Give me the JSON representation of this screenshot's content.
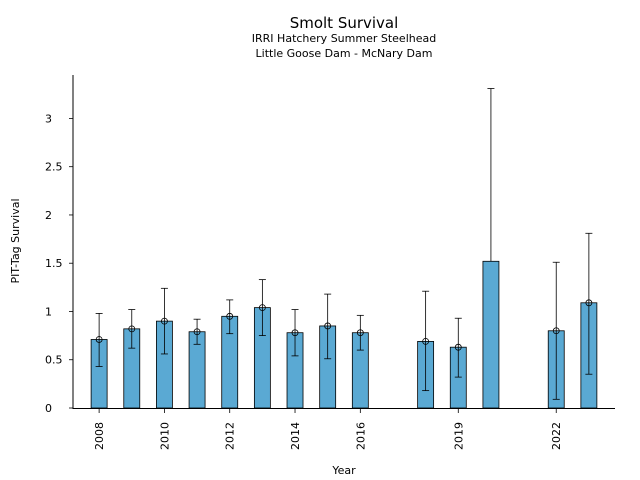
{
  "chart_data": {
    "type": "bar",
    "title": "Smolt Survival",
    "subtitle": [
      "IRRI Hatchery Summer Steelhead",
      "Little Goose Dam - McNary Dam"
    ],
    "xlabel": "Year",
    "ylabel": "PIT-Tag Survival",
    "ylim": [
      0,
      3.45
    ],
    "xlim": [
      2007.2,
      2023.8
    ],
    "yticks": [
      0,
      0.5,
      1,
      1.5,
      2,
      2.5,
      3
    ],
    "ytick_labels": [
      "0",
      "0.5",
      "1",
      "1.5",
      "2",
      "2.5",
      "3"
    ],
    "xticks": [
      2008,
      2010,
      2012,
      2014,
      2016,
      2019,
      2022
    ],
    "xtick_labels": [
      "2008",
      "2010",
      "2012",
      "2014",
      "2016",
      "2019",
      "2022"
    ],
    "grid": false,
    "legend": "none",
    "bar_color": "#5aa9d3",
    "series": [
      {
        "x": [
          2008,
          2009,
          2010,
          2011,
          2012,
          2013,
          2014,
          2015,
          2016,
          2018,
          2019,
          2020,
          2022,
          2023
        ],
        "values": [
          0.71,
          0.82,
          0.9,
          0.79,
          0.95,
          1.04,
          0.78,
          0.85,
          0.78,
          0.69,
          0.63,
          1.52,
          0.8,
          1.09
        ],
        "err_low": [
          0.43,
          0.62,
          0.56,
          0.66,
          0.77,
          0.75,
          0.54,
          0.51,
          0.6,
          0.18,
          0.32,
          null,
          0.09,
          0.35
        ],
        "err_high": [
          0.98,
          1.02,
          1.24,
          0.92,
          1.12,
          1.33,
          1.02,
          1.18,
          0.96,
          1.21,
          0.93,
          3.31,
          1.51,
          1.81
        ],
        "point_marker": [
          true,
          true,
          true,
          true,
          true,
          true,
          true,
          true,
          true,
          true,
          true,
          false,
          true,
          true
        ]
      }
    ]
  }
}
